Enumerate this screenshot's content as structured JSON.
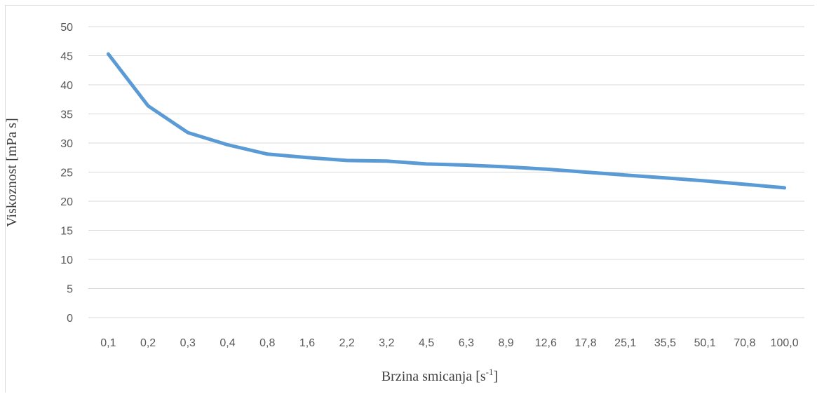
{
  "chart_data": {
    "type": "line",
    "title": "",
    "xlabel": "Brzina smicanja [s",
    "xlabel_sup": "-1",
    "xlabel_suffix": "]",
    "ylabel": "Viskoznost [mPa s]",
    "ylim": [
      0,
      50
    ],
    "yticks": [
      "0",
      "5",
      "10",
      "15",
      "20",
      "25",
      "30",
      "35",
      "40",
      "45",
      "50"
    ],
    "grid": true,
    "legend": "none",
    "line_color": "#5b9bd5",
    "categories": [
      "0,1",
      "0,2",
      "0,3",
      "0,4",
      "0,8",
      "1,6",
      "2,2",
      "3,2",
      "4,5",
      "6,3",
      "8,9",
      "12,6",
      "17,8",
      "25,1",
      "35,5",
      "50,1",
      "70,8",
      "100,0"
    ],
    "series": [
      {
        "values": [
          45.3,
          36.4,
          31.8,
          29.7,
          28.1,
          27.5,
          27.0,
          26.9,
          26.4,
          26.2,
          25.9,
          25.5,
          25.0,
          24.5,
          24.0,
          23.5,
          22.9,
          22.3
        ]
      }
    ]
  }
}
